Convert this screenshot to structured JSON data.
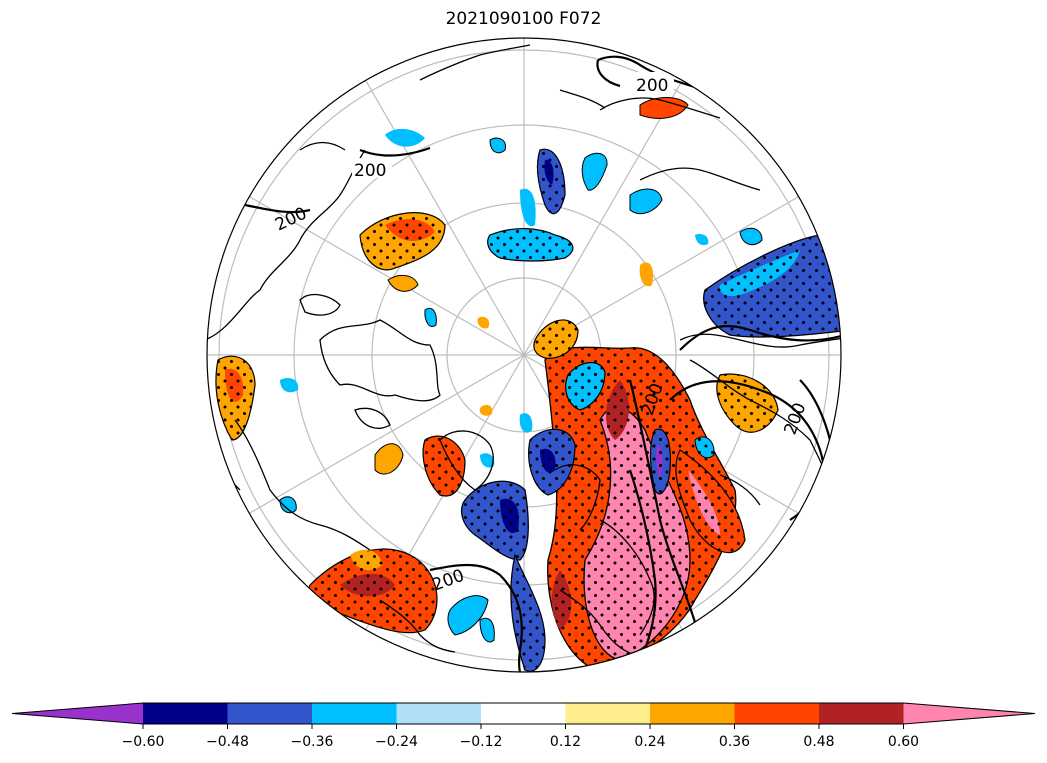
{
  "title": "2021090100 F072",
  "map": {
    "projection": "north-polar-stereographic",
    "contour_label": "200",
    "graticule": true,
    "stippling": "dots mark significant areas"
  },
  "colorbar": {
    "ticks": [
      "−0.60",
      "−0.48",
      "−0.36",
      "−0.24",
      "−0.12",
      "0.12",
      "0.24",
      "0.36",
      "0.48",
      "0.60"
    ],
    "levels": [
      -0.6,
      -0.48,
      -0.36,
      -0.24,
      -0.12,
      0.12,
      0.24,
      0.36,
      0.48,
      0.6
    ],
    "colors": [
      "#9932CC",
      "#00008B",
      "#3355CC",
      "#00BFFF",
      "#B0E0F8",
      "#FFFFFF",
      "#FFEC8B",
      "#FFA500",
      "#FF4500",
      "#B22222",
      "#FF85B0"
    ],
    "extend": "both"
  }
}
